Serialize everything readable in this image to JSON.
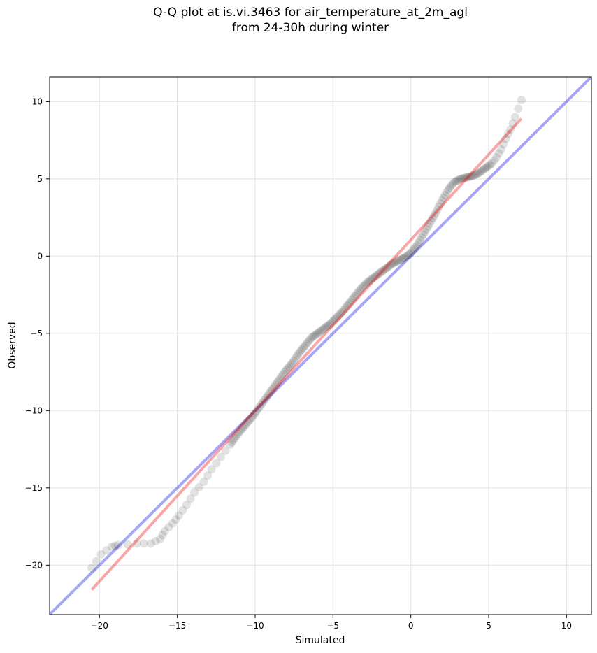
{
  "chart_data": {
    "type": "scatter",
    "title": "Q-Q plot at is.vi.3463 for air_temperature_at_2m_agl",
    "subtitle": "from 24-30h during winter",
    "xlabel": "Simulated",
    "ylabel": "Observed",
    "xlim": [
      -23.2,
      11.6
    ],
    "ylim": [
      -23.2,
      11.6
    ],
    "xticks": [
      -20,
      -15,
      -10,
      -5,
      0,
      5,
      10
    ],
    "yticks": [
      -20,
      -15,
      -10,
      -5,
      0,
      5,
      10
    ],
    "xtick_labels": [
      "−20",
      "−15",
      "−10",
      "−5",
      "0",
      "5",
      "10"
    ],
    "ytick_labels": [
      "−20",
      "−15",
      "−10",
      "−5",
      "0",
      "5",
      "10"
    ],
    "grid": true,
    "identity_line_color": "#0000ee",
    "fit_line_color": "#ee0000",
    "points_color": "#222222",
    "fit_line": {
      "x": [
        -20.5,
        7.1
      ],
      "y": [
        -21.6,
        8.9
      ]
    },
    "quantile_curve": {
      "x": [
        -20.5,
        -19.9,
        -19.2,
        -18.8,
        -17.6,
        -16.7,
        -16.1,
        -15.8,
        -15.3,
        -14.9,
        -14.4,
        -13.9,
        -13.3,
        -12.8,
        -12.2,
        -11.6,
        -11.1,
        -10.6,
        -10.1,
        -9.6,
        -9.1,
        -8.6,
        -8.1,
        -7.6,
        -7.2,
        -6.8,
        -6.4,
        -6.0,
        -5.6,
        -5.2,
        -4.8,
        -4.4,
        -4.0,
        -3.6,
        -3.2,
        -2.8,
        -2.4,
        -2.0,
        -1.6,
        -1.2,
        -0.8,
        -0.4,
        0.0,
        0.4,
        0.8,
        1.2,
        1.6,
        2.0,
        2.4,
        2.8,
        3.2,
        3.6,
        4.0,
        4.4,
        4.8,
        5.2,
        5.5,
        5.8,
        6.1,
        6.4,
        6.7,
        7.1
      ],
      "y": [
        -20.2,
        -19.3,
        -18.8,
        -18.7,
        -18.6,
        -18.6,
        -18.3,
        -17.8,
        -17.3,
        -16.8,
        -16.1,
        -15.3,
        -14.6,
        -13.8,
        -13.0,
        -12.2,
        -11.5,
        -10.9,
        -10.3,
        -9.6,
        -8.9,
        -8.2,
        -7.5,
        -6.9,
        -6.3,
        -5.8,
        -5.3,
        -5.0,
        -4.7,
        -4.4,
        -4.0,
        -3.6,
        -3.1,
        -2.6,
        -2.1,
        -1.7,
        -1.4,
        -1.1,
        -0.8,
        -0.5,
        -0.3,
        -0.1,
        0.2,
        0.7,
        1.4,
        2.1,
        2.8,
        3.6,
        4.3,
        4.8,
        5.0,
        5.1,
        5.2,
        5.4,
        5.7,
        6.0,
        6.4,
        6.9,
        7.6,
        8.2,
        9.0,
        10.1
      ]
    }
  }
}
